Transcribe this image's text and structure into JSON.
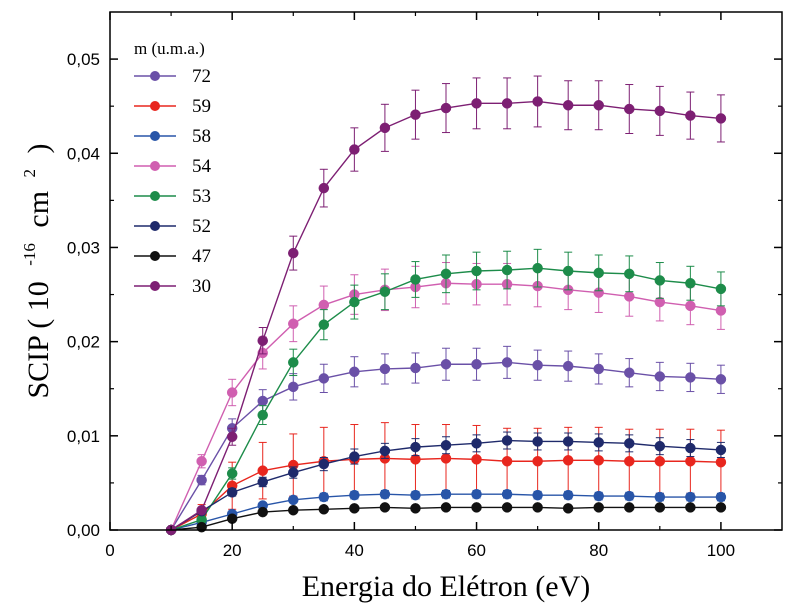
{
  "chart_data": {
    "type": "line",
    "xlabel": "Energia do Elétron (eV)",
    "ylabel": {
      "prefix": "SCIP ( 10",
      "exp1": "-16",
      "mid": "cm",
      "exp2": "2",
      "suffix": ")"
    },
    "xlim": [
      0,
      110
    ],
    "ylim": [
      0,
      0.055
    ],
    "x_ticks": [
      0,
      20,
      40,
      60,
      80,
      100
    ],
    "x_tick_labels": [
      "0",
      "20",
      "40",
      "60",
      "80",
      "100"
    ],
    "y_ticks": [
      0,
      0.01,
      0.02,
      0.03,
      0.04,
      0.05
    ],
    "y_tick_labels": [
      "0,00",
      "0,01",
      "0,02",
      "0,03",
      "0,04",
      "0,05"
    ],
    "legend_title": "m (u.m.a.)",
    "legend_position": "top-left",
    "grid": false,
    "x": [
      10,
      15,
      20,
      25,
      30,
      35,
      40,
      45,
      50,
      55,
      60,
      65,
      70,
      75,
      80,
      85,
      90,
      95,
      100
    ],
    "series": [
      {
        "name": "72",
        "color": "#6a50a7",
        "values": [
          0.0,
          0.0053,
          0.0108,
          0.0137,
          0.0152,
          0.0161,
          0.0168,
          0.0171,
          0.0172,
          0.0176,
          0.0176,
          0.0178,
          0.0175,
          0.0174,
          0.0171,
          0.0167,
          0.0163,
          0.0162,
          0.016
        ],
        "errors": [
          0.0,
          0.0005,
          0.001,
          0.0012,
          0.0014,
          0.0015,
          0.0016,
          0.0016,
          0.0016,
          0.0017,
          0.0017,
          0.0017,
          0.0016,
          0.0016,
          0.0016,
          0.0015,
          0.0015,
          0.0015,
          0.0015
        ]
      },
      {
        "name": "59",
        "color": "#e8261e",
        "values": [
          0.0,
          0.0017,
          0.0047,
          0.0063,
          0.0069,
          0.0073,
          0.0075,
          0.0076,
          0.0075,
          0.0076,
          0.0075,
          0.0073,
          0.0073,
          0.0074,
          0.0074,
          0.0073,
          0.0073,
          0.0073,
          0.0072
        ],
        "errors": [
          0.0,
          0.001,
          0.0025,
          0.003,
          0.0033,
          0.0036,
          0.0037,
          0.0038,
          0.0037,
          0.0036,
          0.0036,
          0.0035,
          0.0035,
          0.0035,
          0.0035,
          0.0034,
          0.0034,
          0.0034,
          0.0034
        ]
      },
      {
        "name": "58",
        "color": "#2855a8",
        "values": [
          0.0,
          0.0008,
          0.0017,
          0.0026,
          0.0032,
          0.0035,
          0.0037,
          0.0038,
          0.0037,
          0.0038,
          0.0038,
          0.0038,
          0.0037,
          0.0037,
          0.0036,
          0.0036,
          0.0035,
          0.0035,
          0.0035
        ],
        "errors": [
          0.0,
          0.0001,
          0.0002,
          0.0003,
          0.0003,
          0.0004,
          0.0004,
          0.0004,
          0.0004,
          0.0004,
          0.0004,
          0.0004,
          0.0004,
          0.0004,
          0.0004,
          0.0004,
          0.0004,
          0.0004,
          0.0004
        ]
      },
      {
        "name": "54",
        "color": "#d05fb0",
        "values": [
          0.0,
          0.0073,
          0.0146,
          0.0188,
          0.0219,
          0.0239,
          0.025,
          0.0255,
          0.0258,
          0.0262,
          0.0261,
          0.0261,
          0.0259,
          0.0255,
          0.0252,
          0.0248,
          0.0242,
          0.0238,
          0.0233
        ],
        "errors": [
          0.0,
          0.0007,
          0.0014,
          0.0017,
          0.0019,
          0.002,
          0.0021,
          0.0022,
          0.0022,
          0.0022,
          0.0022,
          0.0022,
          0.0022,
          0.0021,
          0.0021,
          0.0021,
          0.002,
          0.002,
          0.002
        ]
      },
      {
        "name": "53",
        "color": "#1d8c4a",
        "values": [
          0.0,
          0.0011,
          0.006,
          0.0122,
          0.0178,
          0.0218,
          0.0242,
          0.0253,
          0.0266,
          0.0272,
          0.0275,
          0.0276,
          0.0278,
          0.0275,
          0.0273,
          0.0272,
          0.0265,
          0.0262,
          0.0256
        ],
        "errors": [
          0.0,
          0.0002,
          0.0006,
          0.001,
          0.0014,
          0.0016,
          0.0018,
          0.0019,
          0.0019,
          0.002,
          0.002,
          0.002,
          0.002,
          0.002,
          0.0019,
          0.0019,
          0.0019,
          0.0018,
          0.0018
        ]
      },
      {
        "name": "52",
        "color": "#1f2a6b",
        "values": [
          0.0,
          0.002,
          0.004,
          0.0051,
          0.0061,
          0.007,
          0.0078,
          0.0084,
          0.0088,
          0.009,
          0.0092,
          0.0095,
          0.0094,
          0.0094,
          0.0093,
          0.0092,
          0.0089,
          0.0087,
          0.0085
        ],
        "errors": [
          0.0,
          0.0002,
          0.0004,
          0.0005,
          0.0006,
          0.0007,
          0.0008,
          0.0008,
          0.0009,
          0.0009,
          0.0009,
          0.0009,
          0.0009,
          0.0009,
          0.0009,
          0.0009,
          0.0009,
          0.0009,
          0.0008
        ]
      },
      {
        "name": "47",
        "color": "#111111",
        "values": [
          0.0,
          0.0003,
          0.0012,
          0.0019,
          0.0021,
          0.0022,
          0.0023,
          0.0024,
          0.0023,
          0.0024,
          0.0024,
          0.0024,
          0.0024,
          0.0023,
          0.0024,
          0.0024,
          0.0024,
          0.0024,
          0.0024
        ],
        "errors": [
          0.0,
          0.0001,
          0.0001,
          0.0002,
          0.0002,
          0.0002,
          0.0002,
          0.0002,
          0.0002,
          0.0002,
          0.0002,
          0.0002,
          0.0002,
          0.0002,
          0.0002,
          0.0002,
          0.0002,
          0.0002,
          0.0002
        ]
      },
      {
        "name": "30",
        "color": "#7d1f73",
        "values": [
          0.0,
          0.0021,
          0.0099,
          0.0201,
          0.0294,
          0.0363,
          0.0404,
          0.0427,
          0.0441,
          0.0448,
          0.0453,
          0.0453,
          0.0455,
          0.0451,
          0.0451,
          0.0447,
          0.0445,
          0.044,
          0.0437
        ],
        "errors": [
          0.0,
          0.0002,
          0.0009,
          0.0014,
          0.0018,
          0.002,
          0.0023,
          0.0025,
          0.0026,
          0.0026,
          0.0027,
          0.0027,
          0.0027,
          0.0026,
          0.0026,
          0.0026,
          0.0026,
          0.0025,
          0.0025
        ]
      }
    ]
  }
}
